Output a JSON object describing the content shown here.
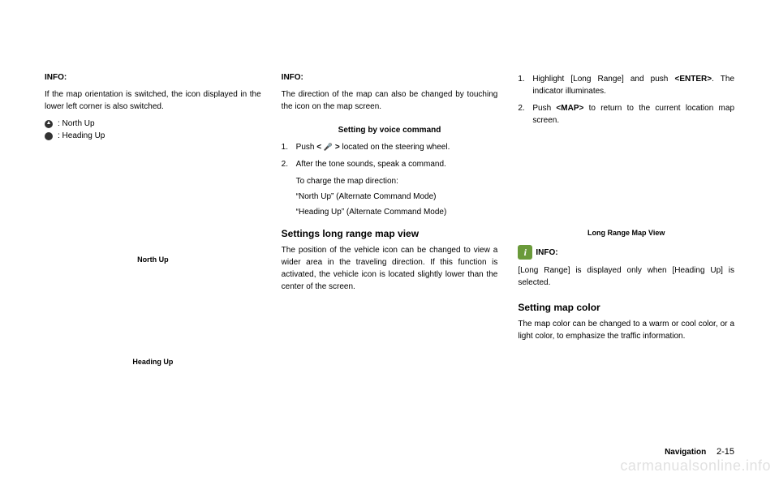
{
  "col1": {
    "info_label": "INFO:",
    "intro": "If the map orientation is switched, the icon displayed in the lower left corner is also switched.",
    "north_up": ": North Up",
    "heading_up": ": Heading Up",
    "caption_north": "North Up",
    "caption_heading": "Heading Up"
  },
  "col2": {
    "info_label": "INFO:",
    "direction_text": "The direction of the map can also be changed by touching the icon on the map screen.",
    "voice_heading": "Setting by voice command",
    "step1_num": "1.",
    "step1_txt_a": "Push ",
    "step1_txt_b": " located on the steering wheel.",
    "talk_bracket_open": "< ",
    "talk_bracket_close": " >",
    "step2_num": "2.",
    "step2_txt": "After the tone sounds, speak a command.",
    "charge_line": "To charge the map direction:",
    "north_cmd": "“North Up” (Alternate Command Mode)",
    "heading_cmd": "“Heading Up” (Alternate Command Mode)",
    "long_range_heading": "Settings long range map view",
    "long_range_text": "The position of the vehicle icon can be changed to view a wider area in the traveling direction. If this function is activated, the vehicle icon is located slightly lower than the center of the screen."
  },
  "col3": {
    "step1_num": "1.",
    "step1_txt_a": "Highlight [Long Range] and push ",
    "step1_enter": "<ENTER>",
    "step1_txt_b": ". The indicator illuminates.",
    "step2_num": "2.",
    "step2_txt_a": "Push ",
    "step2_map": "<MAP>",
    "step2_txt_b": " to return to the current location map screen.",
    "caption_long_range": "Long Range Map View",
    "info_icon_symbol": "i",
    "info_label": "INFO:",
    "long_range_note": "[Long Range] is displayed only when [Heading Up] is selected.",
    "color_heading": "Setting map color",
    "color_text": "The map color can be changed to a warm or cool color, or a light color, to emphasize the traffic information."
  },
  "footer": {
    "nav": "Navigation",
    "page": "2-15"
  },
  "watermark": "carmanualsonline.info"
}
